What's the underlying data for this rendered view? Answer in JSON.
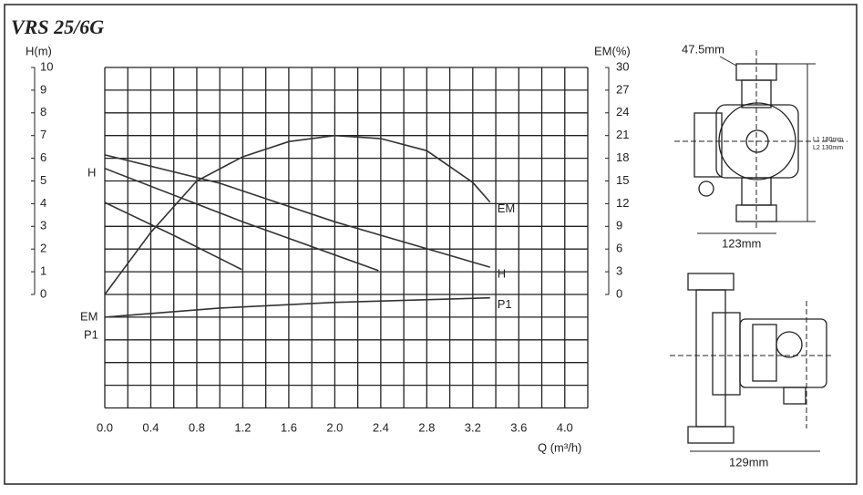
{
  "chart_data": {
    "type": "line",
    "title": "VRS 25/6G",
    "y_label": "H(m)",
    "y2_label": "EM(%)",
    "x_label": "Q (m³/h)",
    "xlim": [
      0,
      4.2
    ],
    "ylim": [
      -5,
      10
    ],
    "y2lim": [
      -15,
      30
    ],
    "xticks": [
      {
        "value": 0,
        "label": "0.0"
      },
      0.4,
      0.8,
      1.2,
      1.6,
      {
        "value": 2,
        "label": "2.0"
      },
      2.4,
      2.8,
      3.2,
      3.6,
      {
        "value": 4,
        "label": "4.0"
      }
    ],
    "yticks": [
      0,
      1,
      2,
      3,
      4,
      5,
      6,
      7,
      8,
      9,
      10
    ],
    "y2ticks": [
      0,
      3,
      6,
      9,
      12,
      15,
      18,
      21,
      24,
      27,
      30
    ],
    "x_grid": [
      0,
      0.2,
      0.4,
      0.6,
      0.8,
      1,
      1.2,
      1.4,
      1.6,
      1.8,
      2,
      2.2,
      2.4,
      2.6,
      2.8,
      3,
      3.2,
      3.4,
      3.6,
      3.8,
      4,
      4.2
    ],
    "y_grid": [
      -5,
      -4,
      -3,
      -2,
      -1,
      0,
      1,
      2,
      3,
      4,
      5,
      6,
      7,
      8,
      9,
      10
    ],
    "grid": true,
    "left_labels": [
      "H",
      "EM",
      "P1"
    ],
    "series": [
      {
        "name": "H",
        "color": "#333333",
        "x": [
          0,
          1,
          2,
          3.35
        ],
        "values": [
          6.15,
          4.9,
          3.2,
          1.2
        ]
      },
      {
        "color": "#333333",
        "x": [
          0,
          1.2,
          2.38
        ],
        "values": [
          5.55,
          3.2,
          1.05
        ]
      },
      {
        "color": "#333333",
        "x": [
          0,
          0.6,
          1.19
        ],
        "values": [
          4.05,
          2.6,
          1.1
        ]
      },
      {
        "name": "EM",
        "color": "#333333",
        "axis": "y2",
        "x": [
          0,
          0.4,
          0.8,
          1.2,
          1.6,
          2,
          2.4,
          2.8,
          3.2,
          3.35
        ],
        "values": [
          0,
          8.2,
          15,
          18.2,
          20.2,
          21,
          20.6,
          19,
          14.8,
          12.2
        ]
      },
      {
        "name": "P1",
        "color": "#333333",
        "x": [
          0,
          1,
          2,
          3.35
        ],
        "values": [
          -1,
          -0.6,
          -0.35,
          -0.15
        ]
      }
    ]
  },
  "drawings": {
    "top": [
      "47.5mm",
      "L1 180mm",
      "L2 130mm",
      "123mm"
    ],
    "bottom": [
      "129mm"
    ]
  }
}
